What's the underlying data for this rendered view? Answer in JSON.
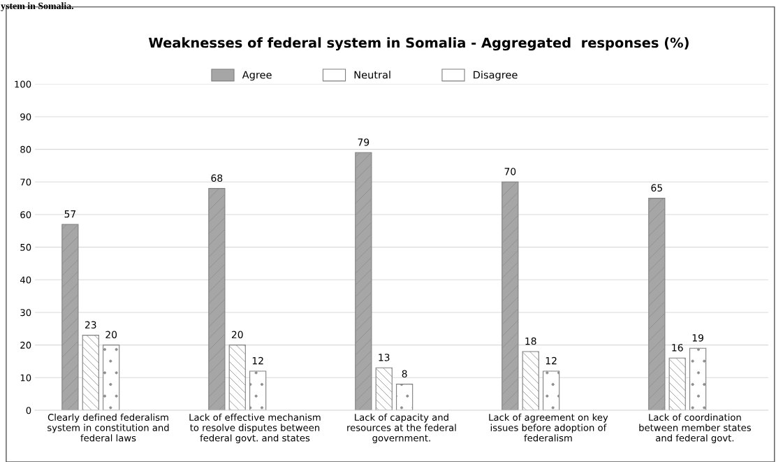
{
  "chart_data": {
    "type": "bar",
    "title": "Weaknesses of federal system in Somalia - Aggregated  responses (%)",
    "annotations": [
      "ystem in Somalia."
    ],
    "categories": [
      "Clearly defined federalism\nsystem in constitution and\nfederal laws",
      "Lack of effective mechanism\nto resolve disputes between\nfederal govt. and states",
      "Lack of capacity and\nresources at the federal\ngovernment.",
      "Lack of agreement on key\nissues before adoption of\nfederalism",
      "Lack of coordination\nbetween member states\nand federal govt."
    ],
    "series": [
      {
        "name": "Agree",
        "color": "#a6a6a6",
        "values": [
          57,
          68,
          79,
          70,
          65
        ]
      },
      {
        "name": "Neutral",
        "color": "#ffffff",
        "values": [
          23,
          20,
          13,
          18,
          16
        ]
      },
      {
        "name": "Disagree",
        "color": "#ffffff",
        "values": [
          20,
          12,
          8,
          12,
          19
        ]
      }
    ],
    "ylim": [
      0,
      100
    ],
    "yticks": [
      0,
      10,
      20,
      30,
      40,
      50,
      60,
      70,
      80,
      90,
      100
    ],
    "grid": "y",
    "legend": "top",
    "data_labels": true
  }
}
